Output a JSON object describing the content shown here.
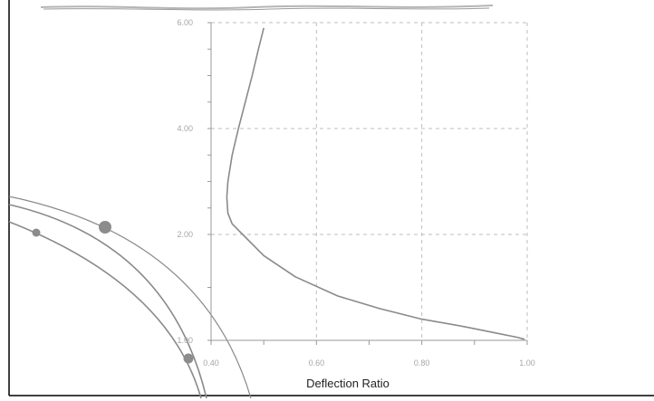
{
  "chart_data": {
    "type": "line",
    "title": "",
    "xlabel": "Deflection Ratio",
    "ylabel": "",
    "xlim": [
      0.4,
      1.0
    ],
    "ylim": [
      1.0,
      6.0
    ],
    "x_ticks": [
      "0.40",
      "0.60",
      "0.80",
      "1.00"
    ],
    "y_ticks": [
      "1.00",
      "2.00",
      "4.00",
      "6.00"
    ],
    "grid": true,
    "grid_style": "dashed",
    "series": [
      {
        "color": "#8a8a8a",
        "points": [
          [
            0.5,
            5.9
          ],
          [
            0.49,
            5.5
          ],
          [
            0.478,
            5.0
          ],
          [
            0.465,
            4.5
          ],
          [
            0.452,
            4.0
          ],
          [
            0.44,
            3.5
          ],
          [
            0.432,
            3.0
          ],
          [
            0.43,
            2.7
          ],
          [
            0.432,
            2.4
          ],
          [
            0.44,
            2.2
          ],
          [
            0.46,
            2.0
          ],
          [
            0.5,
            1.8
          ],
          [
            0.56,
            1.6
          ],
          [
            0.64,
            1.42
          ],
          [
            0.72,
            1.3
          ],
          [
            0.8,
            1.2
          ],
          [
            0.88,
            1.13
          ],
          [
            0.94,
            1.07
          ],
          [
            0.98,
            1.03
          ],
          [
            0.995,
            1.01
          ]
        ]
      }
    ],
    "colors": {
      "grid": "#bdbdbd",
      "axis": "#9a9a9a",
      "curve": "#8a8a8a",
      "markers": "#8c8c8c",
      "frame": "#000000"
    }
  }
}
